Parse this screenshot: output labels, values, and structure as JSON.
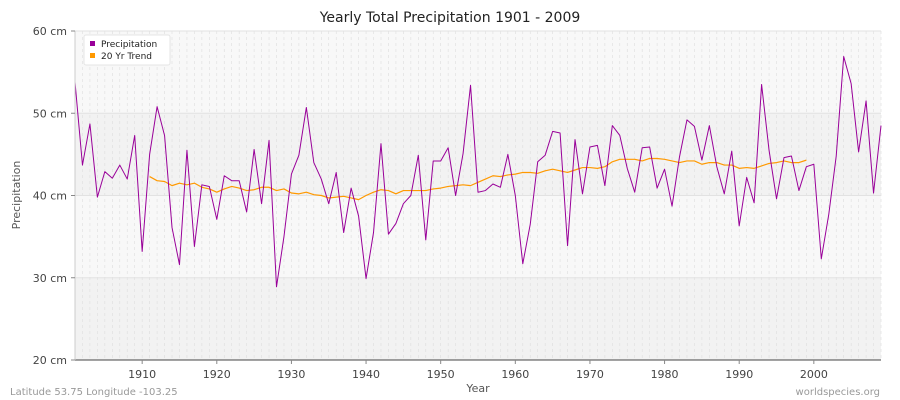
{
  "chart_data": {
    "type": "line",
    "title": "Yearly Total Precipitation 1901 - 2009",
    "xlabel": "Year",
    "ylabel": "Precipitation",
    "xlim": [
      1901,
      2009
    ],
    "ylim": [
      20,
      60
    ],
    "x_ticks": [
      1910,
      1920,
      1930,
      1940,
      1950,
      1960,
      1970,
      1980,
      1990,
      2000
    ],
    "y_ticks": [
      20,
      30,
      40,
      50,
      60
    ],
    "y_tick_labels": [
      "20 cm",
      "30 cm",
      "40 cm",
      "50 cm",
      "60 cm"
    ],
    "grid": true,
    "legend_position": "top-left",
    "series": [
      {
        "name": "Precipitation",
        "color": "#990099",
        "x": [
          1901,
          1902,
          1903,
          1904,
          1905,
          1906,
          1907,
          1908,
          1909,
          1910,
          1911,
          1912,
          1913,
          1914,
          1915,
          1916,
          1917,
          1918,
          1919,
          1920,
          1921,
          1922,
          1923,
          1924,
          1925,
          1926,
          1927,
          1928,
          1929,
          1930,
          1931,
          1932,
          1933,
          1934,
          1935,
          1936,
          1937,
          1938,
          1939,
          1940,
          1941,
          1942,
          1943,
          1944,
          1945,
          1946,
          1947,
          1948,
          1949,
          1950,
          1951,
          1952,
          1953,
          1954,
          1955,
          1956,
          1957,
          1958,
          1959,
          1960,
          1961,
          1962,
          1963,
          1964,
          1965,
          1966,
          1967,
          1968,
          1969,
          1970,
          1971,
          1972,
          1973,
          1974,
          1975,
          1976,
          1977,
          1978,
          1979,
          1980,
          1981,
          1982,
          1983,
          1984,
          1985,
          1986,
          1987,
          1988,
          1989,
          1990,
          1991,
          1992,
          1993,
          1994,
          1995,
          1996,
          1997,
          1998,
          1999,
          2000,
          2001,
          2002,
          2003,
          2004,
          2005,
          2006,
          2007,
          2008,
          2009
        ],
        "values": [
          53.8,
          43.7,
          48.7,
          39.8,
          42.9,
          42.1,
          43.7,
          42.0,
          47.3,
          33.2,
          45.0,
          50.8,
          47.3,
          36.1,
          31.6,
          45.5,
          33.8,
          41.3,
          41.1,
          37.1,
          42.4,
          41.8,
          41.8,
          38.0,
          45.6,
          39.0,
          46.7,
          28.9,
          35.0,
          42.6,
          44.9,
          50.7,
          44.0,
          42.0,
          39.0,
          42.8,
          35.5,
          40.9,
          37.5,
          29.9,
          35.5,
          46.3,
          35.3,
          36.6,
          39.0,
          40.0,
          44.9,
          34.6,
          44.2,
          44.2,
          45.8,
          40.0,
          45.1,
          53.4,
          40.4,
          40.6,
          41.4,
          41.0,
          45.0,
          40.0,
          31.7,
          36.5,
          44.1,
          44.9,
          47.8,
          47.6,
          33.9,
          46.8,
          40.2,
          45.9,
          46.1,
          41.2,
          48.5,
          47.3,
          43.3,
          40.4,
          45.8,
          45.9,
          40.9,
          43.2,
          38.7,
          44.7,
          49.2,
          48.4,
          44.3,
          48.5,
          43.5,
          40.2,
          45.4,
          36.3,
          42.2,
          39.1,
          53.5,
          45.5,
          39.6,
          44.6,
          44.8,
          40.6,
          43.5,
          43.8,
          32.3,
          37.7,
          44.8,
          56.9,
          53.6,
          45.3,
          51.5,
          40.3,
          48.5
        ]
      },
      {
        "name": "20 Yr Trend",
        "color": "#ff9900",
        "x": [
          1911,
          1912,
          1913,
          1914,
          1915,
          1916,
          1917,
          1918,
          1919,
          1920,
          1921,
          1922,
          1923,
          1924,
          1925,
          1926,
          1927,
          1928,
          1929,
          1930,
          1931,
          1932,
          1933,
          1934,
          1935,
          1936,
          1937,
          1938,
          1939,
          1940,
          1941,
          1942,
          1943,
          1944,
          1945,
          1946,
          1947,
          1948,
          1949,
          1950,
          1951,
          1952,
          1953,
          1954,
          1955,
          1956,
          1957,
          1958,
          1959,
          1960,
          1961,
          1962,
          1963,
          1964,
          1965,
          1966,
          1967,
          1968,
          1969,
          1970,
          1971,
          1972,
          1973,
          1974,
          1975,
          1976,
          1977,
          1978,
          1979,
          1980,
          1981,
          1982,
          1983,
          1984,
          1985,
          1986,
          1987,
          1988,
          1989,
          1990,
          1991,
          1992,
          1993,
          1994,
          1995,
          1996,
          1997,
          1998,
          1999
        ],
        "values": [
          42.3,
          41.8,
          41.7,
          41.2,
          41.5,
          41.3,
          41.5,
          41.0,
          40.8,
          40.4,
          40.8,
          41.1,
          40.9,
          40.6,
          40.7,
          41.0,
          41.0,
          40.6,
          40.8,
          40.3,
          40.2,
          40.4,
          40.1,
          40.0,
          39.7,
          39.8,
          39.9,
          39.7,
          39.5,
          40.0,
          40.4,
          40.7,
          40.6,
          40.2,
          40.6,
          40.6,
          40.6,
          40.6,
          40.8,
          40.9,
          41.1,
          41.2,
          41.3,
          41.2,
          41.6,
          42.0,
          42.4,
          42.3,
          42.5,
          42.6,
          42.8,
          42.8,
          42.7,
          43.0,
          43.2,
          43.0,
          42.8,
          43.1,
          43.4,
          43.4,
          43.3,
          43.5,
          44.1,
          44.4,
          44.4,
          44.4,
          44.2,
          44.5,
          44.5,
          44.4,
          44.2,
          44.0,
          44.2,
          44.2,
          43.8,
          44.0,
          44.0,
          43.7,
          43.7,
          43.3,
          43.4,
          43.3,
          43.6,
          43.9,
          44.0,
          44.2,
          44.0,
          44.0,
          44.3
        ]
      }
    ]
  },
  "footer": {
    "location": "Latitude 53.75 Longitude -103.25",
    "source": "worldspecies.org"
  }
}
